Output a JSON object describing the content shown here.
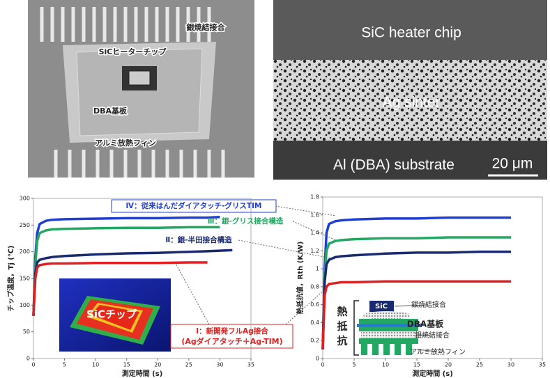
{
  "photos": {
    "module": {
      "labels": [
        "銀焼結接合",
        "SiCヒーターチップ",
        "DBA基板",
        "アルミ放熱フィン"
      ]
    },
    "cross_section": {
      "labels": [
        "SiC heater chip",
        "Ag sinter",
        "Al (DBA) substrate",
        "20 μm"
      ]
    }
  },
  "chart_data": [
    {
      "type": "line",
      "x_label": "測定時間 (s)",
      "y_label": "チップ温度，Tj (℃)",
      "x": [
        0,
        0.3,
        0.6,
        1,
        2,
        3,
        5,
        10,
        15,
        20,
        25,
        28,
        30,
        32
      ],
      "xlim": [
        0,
        35
      ],
      "xticks": [
        0,
        5,
        10,
        15,
        20,
        25,
        30,
        35
      ],
      "ylim": [
        0,
        300
      ],
      "yticks": [
        0,
        50,
        100,
        150,
        200,
        250,
        300
      ],
      "series": [
        {
          "name": "Ⅳ：従来はんだダイアタッチ-グリスTIM",
          "color": "#1f3fd0",
          "values": [
            80,
            190,
            235,
            252,
            258,
            260,
            261,
            262,
            263,
            263,
            264,
            264,
            265,
            null
          ]
        },
        {
          "name": "Ⅲ：銀-グリス接合構造",
          "color": "#22a862",
          "values": [
            80,
            175,
            220,
            235,
            240,
            242,
            243,
            244,
            245,
            245,
            246,
            246,
            246,
            null
          ]
        },
        {
          "name": "Ⅱ：銀-半田接合構造",
          "color": "#1a2a6e",
          "values": [
            80,
            160,
            180,
            185,
            188,
            190,
            192,
            195,
            197,
            198,
            200,
            201,
            202,
            203
          ]
        },
        {
          "name": "Ⅰ：新開発フルAg接合",
          "color": "#e02020",
          "values": [
            80,
            150,
            170,
            175,
            177,
            178,
            178,
            179,
            179,
            179,
            180,
            180,
            null,
            null
          ]
        }
      ],
      "annotations": [
        "(Agダイアタッチ＋Ag-TIM)",
        "SiCチップ"
      ]
    },
    {
      "type": "line",
      "x_label": "測定時間 (s)",
      "y_label": "熱抵抗値，Rth (K/W)",
      "x": [
        0,
        0.3,
        0.6,
        1,
        2,
        3,
        5,
        10,
        15,
        20,
        25,
        30
      ],
      "xlim": [
        0,
        35
      ],
      "xticks": [
        0,
        5,
        10,
        15,
        20,
        25,
        30,
        35
      ],
      "ylim": [
        0,
        1.8
      ],
      "yticks": [
        0,
        0.2,
        0.4,
        0.6,
        0.8,
        1,
        1.2,
        1.4,
        1.6,
        1.8
      ],
      "series": [
        {
          "color": "#1f3fd0",
          "values": [
            0.1,
            1.0,
            1.4,
            1.5,
            1.53,
            1.54,
            1.55,
            1.56,
            1.56,
            1.57,
            1.57,
            1.57
          ]
        },
        {
          "color": "#22a862",
          "values": [
            0.1,
            0.9,
            1.2,
            1.28,
            1.31,
            1.32,
            1.33,
            1.34,
            1.34,
            1.35,
            1.35,
            1.35
          ]
        },
        {
          "color": "#1a2a6e",
          "values": [
            0.1,
            0.85,
            1.05,
            1.1,
            1.13,
            1.14,
            1.15,
            1.17,
            1.18,
            1.18,
            1.19,
            1.19
          ]
        },
        {
          "color": "#e02020",
          "values": [
            0.1,
            0.7,
            0.8,
            0.83,
            0.84,
            0.85,
            0.85,
            0.86,
            0.86,
            0.86,
            0.86,
            0.86
          ]
        }
      ],
      "annotations": [
        "熱抵抗",
        "SiC",
        "銀焼結接合",
        "DBA基板",
        "銀焼結接合",
        "アルミ放熱フィン"
      ]
    }
  ]
}
